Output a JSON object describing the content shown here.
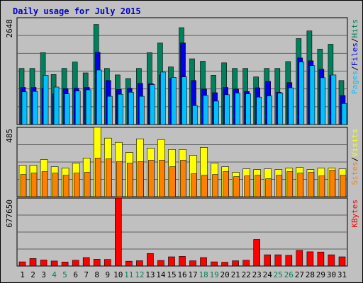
{
  "title": "Daily usage for July 2015",
  "colors": {
    "background": "#c0c0c0",
    "panel": "#c0c0c0",
    "title": "#0000cc",
    "grid": "#606060",
    "hits": "#00805c",
    "files": "#0000e6",
    "pages": "#00c0ff",
    "visits": "#ffff00",
    "sites": "#ff8000",
    "kbytes": "#ff0000",
    "weekend_label": "#00805c",
    "weekday_label": "#000000"
  },
  "chart_data": [
    {
      "type": "bar",
      "panel": "hits",
      "scale_label": "2648",
      "ylim": [
        0,
        2648
      ],
      "grid": true,
      "series_labels": [
        {
          "text": "Hits",
          "color": "#00805c"
        },
        {
          "text": "Files",
          "color": "#0000e6"
        },
        {
          "text": "Pages",
          "color": "#00c0ff"
        }
      ],
      "series": [
        {
          "name": "Hits",
          "color": "#00805c",
          "values": [
            1390,
            1390,
            1780,
            1240,
            1390,
            1550,
            1280,
            2480,
            1390,
            1230,
            1140,
            1390,
            1780,
            2020,
            1430,
            2400,
            1630,
            1570,
            1220,
            1530,
            1390,
            1390,
            1180,
            1390,
            1390,
            1560,
            2130,
            2320,
            1870,
            1990,
            1090
          ]
        },
        {
          "name": "Files",
          "color": "#0000e6",
          "values": [
            920,
            920,
            900,
            760,
            890,
            900,
            920,
            1790,
            1090,
            870,
            900,
            1020,
            1010,
            1230,
            1140,
            2020,
            1090,
            880,
            790,
            920,
            880,
            820,
            910,
            1070,
            800,
            1040,
            1650,
            1580,
            1370,
            1220,
            720
          ]
        },
        {
          "name": "Pages",
          "color": "#00c0ff",
          "values": [
            810,
            820,
            1220,
            930,
            760,
            830,
            860,
            1350,
            700,
            750,
            800,
            700,
            990,
            1300,
            1170,
            1180,
            470,
            720,
            580,
            740,
            780,
            760,
            680,
            710,
            780,
            910,
            1550,
            1460,
            1160,
            1230,
            520
          ]
        }
      ]
    },
    {
      "type": "bar",
      "panel": "visits",
      "scale_label": "485",
      "ylim": [
        0,
        485
      ],
      "grid": true,
      "series_labels": [
        {
          "text": "Visits",
          "color": "#ffff00"
        },
        {
          "text": "Sites",
          "color": "#ff8000"
        }
      ],
      "series": [
        {
          "name": "Visits",
          "color": "#ffff00",
          "values": [
            220,
            220,
            260,
            210,
            200,
            235,
            270,
            485,
            410,
            380,
            310,
            405,
            340,
            400,
            330,
            330,
            290,
            345,
            235,
            210,
            170,
            195,
            190,
            195,
            190,
            200,
            205,
            190,
            200,
            200,
            195
          ]
        },
        {
          "name": "Sites",
          "color": "#ff8000",
          "values": [
            155,
            165,
            175,
            165,
            150,
            165,
            170,
            270,
            265,
            245,
            235,
            245,
            255,
            255,
            210,
            255,
            160,
            150,
            155,
            175,
            140,
            145,
            150,
            125,
            150,
            175,
            165,
            170,
            145,
            185,
            150
          ]
        }
      ]
    },
    {
      "type": "bar",
      "panel": "kbytes",
      "scale_label": "677650",
      "ylim": [
        0,
        677650
      ],
      "grid": true,
      "series_labels": [
        {
          "text": "KBytes",
          "color": "#ff0000"
        }
      ],
      "series": [
        {
          "name": "KBytes",
          "color": "#ff0000",
          "values": [
            42000,
            75000,
            60000,
            50000,
            40000,
            58000,
            85000,
            68000,
            66000,
            677650,
            48000,
            53000,
            125000,
            56000,
            92000,
            96000,
            52000,
            85000,
            42000,
            38000,
            52000,
            58000,
            265000,
            112000,
            112000,
            107000,
            157000,
            142000,
            140000,
            112000,
            92000
          ]
        }
      ]
    }
  ],
  "days": [
    "1",
    "2",
    "3",
    "4",
    "5",
    "6",
    "7",
    "8",
    "9",
    "10",
    "11",
    "12",
    "13",
    "14",
    "15",
    "16",
    "17",
    "18",
    "19",
    "20",
    "21",
    "22",
    "23",
    "24",
    "25",
    "26",
    "27",
    "28",
    "29",
    "30",
    "31"
  ],
  "weekend_days": [
    "4",
    "5",
    "11",
    "12",
    "18",
    "19",
    "25",
    "26"
  ]
}
